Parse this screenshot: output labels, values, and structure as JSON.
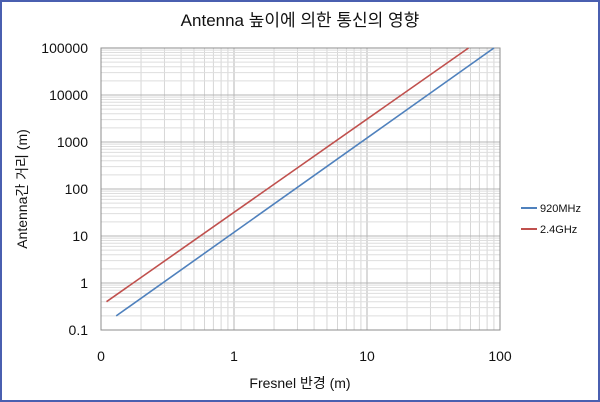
{
  "chart_data": {
    "type": "line",
    "title": "Antenna 높이에 의한 통신의 영향",
    "xlabel": "Fresnel 반경 (m)",
    "ylabel": "Antenna간 거리 (m)",
    "x_scale": "log",
    "y_scale": "log",
    "xlim": [
      0.1,
      100
    ],
    "ylim": [
      0.1,
      100000
    ],
    "x_ticks": [
      "0",
      "1",
      "10",
      "100"
    ],
    "y_ticks": [
      "0.1",
      "1",
      "10",
      "100",
      "1000",
      "10000",
      "100000"
    ],
    "grid": true,
    "legend": "right",
    "series": [
      {
        "name": "920MHz",
        "color": "#4f81bd",
        "x": [
          0.13,
          90
        ],
        "y": [
          0.2,
          100000
        ]
      },
      {
        "name": "2.4GHz",
        "color": "#c0504d",
        "x": [
          0.11,
          58
        ],
        "y": [
          0.4,
          100000
        ]
      }
    ]
  }
}
